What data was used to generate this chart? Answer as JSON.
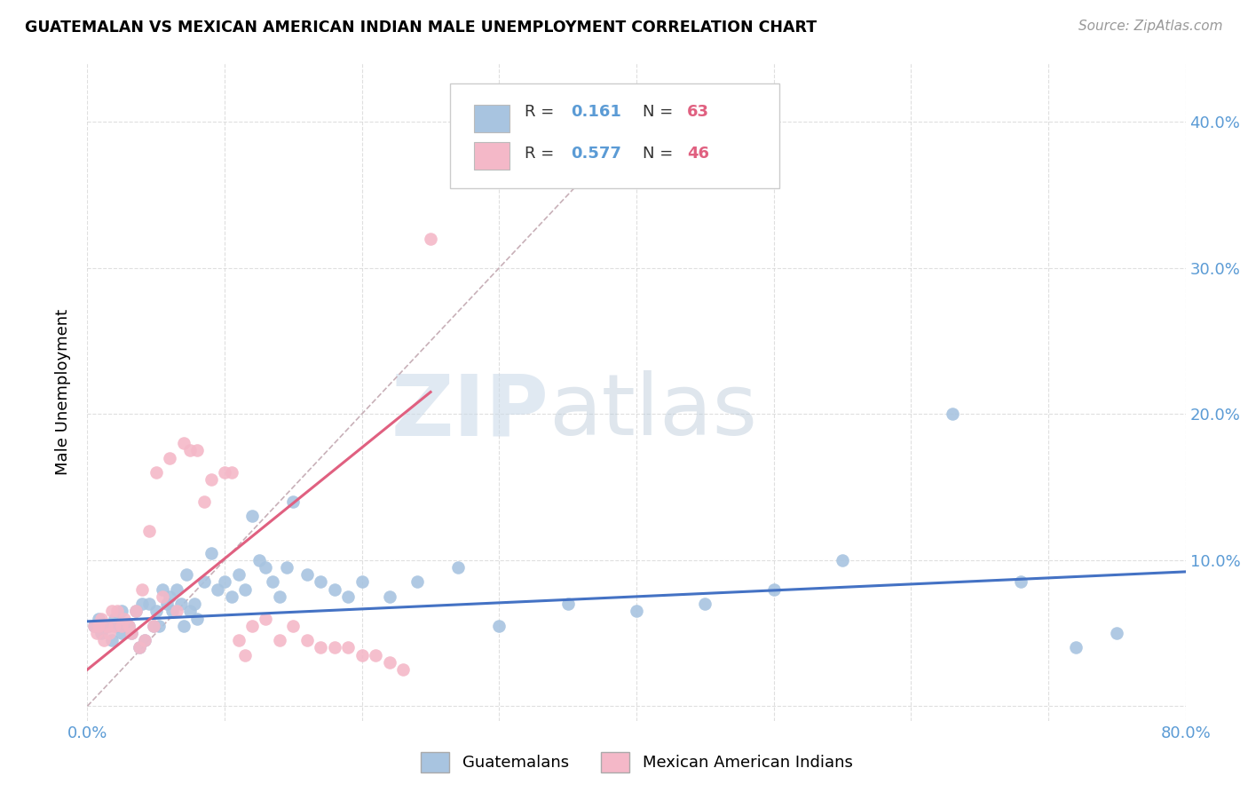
{
  "title": "GUATEMALAN VS MEXICAN AMERICAN INDIAN MALE UNEMPLOYMENT CORRELATION CHART",
  "source": "Source: ZipAtlas.com",
  "ylabel": "Male Unemployment",
  "xlim": [
    0.0,
    0.8
  ],
  "ylim": [
    -0.01,
    0.44
  ],
  "xticks": [
    0.0,
    0.1,
    0.2,
    0.3,
    0.4,
    0.5,
    0.6,
    0.7,
    0.8
  ],
  "yticks": [
    0.0,
    0.1,
    0.2,
    0.3,
    0.4
  ],
  "blue_color": "#a8c4e0",
  "pink_color": "#f4b8c8",
  "blue_line_color": "#4472C4",
  "pink_line_color": "#E06080",
  "diagonal_color": "#c8b0b8",
  "tick_label_color": "#5b9bd5",
  "watermark_zip": "ZIP",
  "watermark_atlas": "atlas",
  "blue_scatter_x": [
    0.005,
    0.008,
    0.01,
    0.015,
    0.018,
    0.02,
    0.022,
    0.025,
    0.025,
    0.028,
    0.03,
    0.032,
    0.035,
    0.038,
    0.04,
    0.042,
    0.045,
    0.048,
    0.05,
    0.052,
    0.055,
    0.058,
    0.06,
    0.062,
    0.065,
    0.068,
    0.07,
    0.072,
    0.075,
    0.078,
    0.08,
    0.085,
    0.09,
    0.095,
    0.1,
    0.105,
    0.11,
    0.115,
    0.12,
    0.125,
    0.13,
    0.135,
    0.14,
    0.145,
    0.15,
    0.16,
    0.17,
    0.18,
    0.19,
    0.2,
    0.22,
    0.24,
    0.27,
    0.3,
    0.35,
    0.4,
    0.45,
    0.5,
    0.55,
    0.63,
    0.68,
    0.72,
    0.75
  ],
  "blue_scatter_y": [
    0.055,
    0.06,
    0.05,
    0.055,
    0.045,
    0.06,
    0.055,
    0.065,
    0.05,
    0.055,
    0.055,
    0.05,
    0.065,
    0.04,
    0.07,
    0.045,
    0.07,
    0.055,
    0.065,
    0.055,
    0.08,
    0.07,
    0.075,
    0.065,
    0.08,
    0.07,
    0.055,
    0.09,
    0.065,
    0.07,
    0.06,
    0.085,
    0.105,
    0.08,
    0.085,
    0.075,
    0.09,
    0.08,
    0.13,
    0.1,
    0.095,
    0.085,
    0.075,
    0.095,
    0.14,
    0.09,
    0.085,
    0.08,
    0.075,
    0.085,
    0.075,
    0.085,
    0.095,
    0.055,
    0.07,
    0.065,
    0.07,
    0.08,
    0.1,
    0.2,
    0.085,
    0.04,
    0.05
  ],
  "pink_scatter_x": [
    0.005,
    0.007,
    0.008,
    0.01,
    0.012,
    0.014,
    0.016,
    0.018,
    0.02,
    0.022,
    0.025,
    0.027,
    0.03,
    0.032,
    0.035,
    0.038,
    0.04,
    0.042,
    0.045,
    0.048,
    0.05,
    0.055,
    0.06,
    0.065,
    0.07,
    0.075,
    0.08,
    0.085,
    0.09,
    0.1,
    0.105,
    0.11,
    0.115,
    0.12,
    0.13,
    0.14,
    0.15,
    0.16,
    0.17,
    0.18,
    0.19,
    0.2,
    0.21,
    0.22,
    0.23,
    0.25
  ],
  "pink_scatter_y": [
    0.055,
    0.05,
    0.055,
    0.06,
    0.045,
    0.055,
    0.05,
    0.065,
    0.055,
    0.065,
    0.055,
    0.06,
    0.055,
    0.05,
    0.065,
    0.04,
    0.08,
    0.045,
    0.12,
    0.055,
    0.16,
    0.075,
    0.17,
    0.065,
    0.18,
    0.175,
    0.175,
    0.14,
    0.155,
    0.16,
    0.16,
    0.045,
    0.035,
    0.055,
    0.06,
    0.045,
    0.055,
    0.045,
    0.04,
    0.04,
    0.04,
    0.035,
    0.035,
    0.03,
    0.025,
    0.32
  ],
  "blue_line_x": [
    0.0,
    0.8
  ],
  "blue_line_y": [
    0.058,
    0.092
  ],
  "pink_line_x": [
    0.0,
    0.25
  ],
  "pink_line_y": [
    0.025,
    0.215
  ],
  "diag_line_x": [
    0.0,
    0.42
  ],
  "diag_line_y": [
    0.0,
    0.42
  ]
}
